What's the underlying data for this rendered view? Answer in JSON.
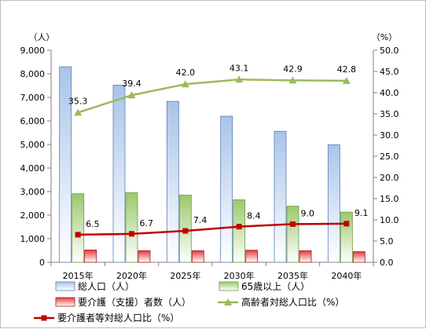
{
  "chart_data": {
    "type": "bar",
    "categories": [
      "2015年",
      "2020年",
      "2025年",
      "2030年",
      "2035年",
      "2040年"
    ],
    "series": [
      {
        "name": "総人口（人）",
        "type": "bar",
        "axis": "left",
        "color": "#4f81bd",
        "values": [
          8300,
          7520,
          6830,
          6200,
          5560,
          4990
        ]
      },
      {
        "name": "65歳以上（人）",
        "type": "bar",
        "axis": "left",
        "color": "#9bbb59",
        "values": [
          2910,
          2950,
          2850,
          2650,
          2380,
          2130
        ]
      },
      {
        "name": "要介護（支援）者数（人）",
        "type": "bar",
        "axis": "left",
        "color": "#c00000",
        "values": [
          520,
          490,
          490,
          510,
          490,
          450
        ]
      },
      {
        "name": "高齢者対総人口比（%）",
        "type": "line",
        "axis": "right",
        "color": "#9bbb59",
        "values": [
          35.3,
          39.4,
          42.0,
          43.1,
          42.9,
          42.8
        ],
        "labels": [
          "35.3",
          "39.4",
          "42.0",
          "43.1",
          "42.9",
          "42.8"
        ]
      },
      {
        "name": "要介護者等対総人口比（%）",
        "type": "line",
        "axis": "right",
        "color": "#c00000",
        "values": [
          6.5,
          6.7,
          7.4,
          8.4,
          9.0,
          9.1
        ],
        "labels": [
          "6.5",
          "6.7",
          "7.4",
          "8.4",
          "9.0",
          "9.1"
        ]
      }
    ],
    "y_left": {
      "unit": "（人）",
      "range": [
        0,
        9000
      ],
      "ticks": [
        "0",
        "1,000",
        "2,000",
        "3,000",
        "4,000",
        "5,000",
        "6,000",
        "7,000",
        "8,000",
        "9,000"
      ]
    },
    "y_right": {
      "unit": "（%）",
      "range": [
        0,
        50
      ],
      "ticks": [
        "0.0",
        "5.0",
        "10.0",
        "15.0",
        "20.0",
        "25.0",
        "30.0",
        "35.0",
        "40.0",
        "45.0",
        "50.0"
      ]
    },
    "grid": false,
    "legend_position": "bottom"
  }
}
